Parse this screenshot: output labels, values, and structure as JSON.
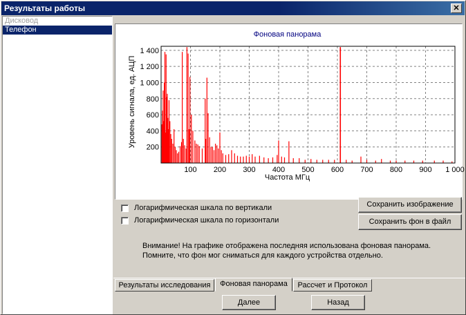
{
  "window": {
    "title": "Результаты работы",
    "close_glyph": "✕"
  },
  "devices": [
    {
      "label": "Дисковод",
      "state": "disabled"
    },
    {
      "label": "Телефон",
      "state": "selected"
    }
  ],
  "options": {
    "log_vertical": {
      "label": "Логарифмическая шкала по вертикали",
      "checked": false
    },
    "log_horizontal": {
      "label": "Логарифмическая шкала по горизонтали",
      "checked": false
    }
  },
  "buttons": {
    "save_image": "Сохранить изображение",
    "save_background": "Сохранить фон в файл",
    "next": "Далее",
    "back": "Назад"
  },
  "note": {
    "line1": "Внимание! На графике отображена последняя использована фоновая панорама.",
    "line2": "Помните, что фон мог сниматься для каждого устройства отдельно."
  },
  "tabs": [
    {
      "label": "Результаты исследования",
      "active": false
    },
    {
      "label": "Фоновая панорама",
      "active": true
    },
    {
      "label": "Рассчет и Протокол",
      "active": false
    }
  ],
  "chart_data": {
    "type": "bar",
    "title": "Фоновая панорама",
    "xlabel": "Частота МГц",
    "ylabel": "Уровень сигнала, ед. АЦП",
    "xlim": [
      0,
      1000
    ],
    "ylim": [
      0,
      1450
    ],
    "xticks": [
      "100",
      "200",
      "300",
      "400",
      "500",
      "600",
      "700",
      "800",
      "900",
      "1 000"
    ],
    "yticks": [
      "200",
      "400",
      "600",
      "800",
      "1 000",
      "1 200",
      "1 400"
    ],
    "grid": true,
    "color": "#ff0000",
    "x": [
      3,
      5,
      7,
      9,
      11,
      13,
      15,
      17,
      19,
      21,
      23,
      25,
      27,
      30,
      33,
      36,
      40,
      44,
      48,
      52,
      56,
      60,
      65,
      70,
      72,
      76,
      80,
      85,
      88,
      92,
      95,
      98,
      103,
      108,
      115,
      120,
      125,
      130,
      140,
      150,
      152,
      156,
      160,
      165,
      170,
      175,
      180,
      185,
      190,
      195,
      200,
      205,
      210,
      220,
      230,
      240,
      250,
      260,
      270,
      280,
      290,
      300,
      310,
      320,
      335,
      350,
      365,
      380,
      395,
      400,
      410,
      420,
      435,
      450,
      470,
      490,
      510,
      530,
      550,
      570,
      590,
      610,
      630,
      650,
      680,
      700,
      730,
      750,
      780,
      800,
      830,
      860,
      890,
      930,
      960,
      990
    ],
    "values": [
      480,
      650,
      900,
      520,
      1000,
      1380,
      380,
      1350,
      820,
      860,
      560,
      420,
      780,
      520,
      360,
      300,
      240,
      420,
      200,
      160,
      120,
      140,
      210,
      260,
      1380,
      300,
      220,
      180,
      1440,
      1360,
      420,
      1070,
      600,
      400,
      280,
      240,
      230,
      210,
      180,
      800,
      300,
      1060,
      620,
      320,
      200,
      200,
      160,
      240,
      220,
      180,
      380,
      160,
      120,
      100,
      110,
      160,
      120,
      90,
      80,
      80,
      90,
      80,
      110,
      80,
      90,
      70,
      60,
      70,
      100,
      280,
      80,
      70,
      270,
      60,
      60,
      40,
      50,
      40,
      40,
      40,
      40,
      1440,
      40,
      30,
      80,
      40,
      30,
      50,
      30,
      30,
      30,
      30,
      30,
      30,
      30,
      20
    ]
  }
}
